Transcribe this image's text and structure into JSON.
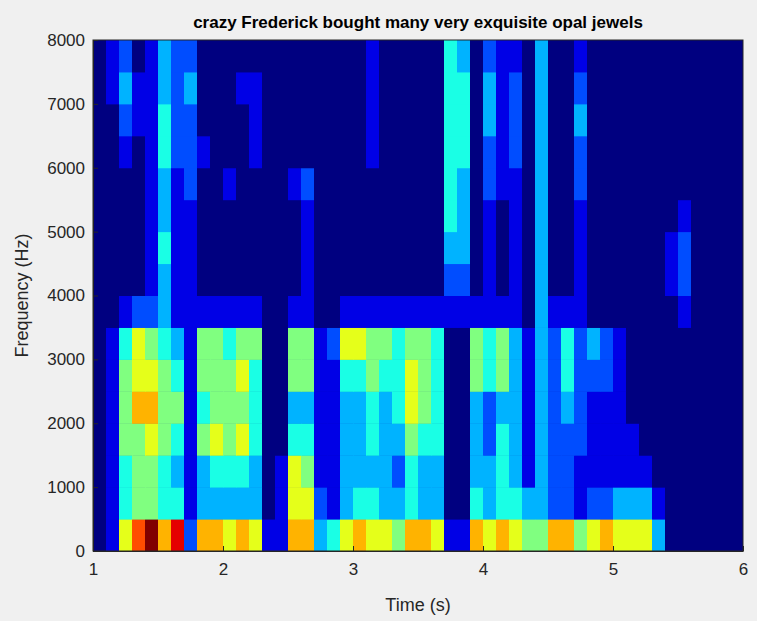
{
  "chart_data": {
    "type": "heatmap",
    "title": "crazy Frederick bought many very exquisite opal jewels",
    "x_label": "Time (s)",
    "y_label": "Frequency (Hz)",
    "xlim": [
      1,
      6
    ],
    "ylim": [
      0,
      8000
    ],
    "xticks": [
      1,
      2,
      3,
      4,
      5,
      6
    ],
    "yticks": [
      0,
      1000,
      2000,
      3000,
      4000,
      5000,
      6000,
      7000,
      8000
    ],
    "x_bins": [
      1,
      1.1,
      1.2,
      1.3,
      1.4,
      1.5,
      1.6,
      1.7,
      1.8,
      1.9,
      2,
      2.1,
      2.2,
      2.3,
      2.4,
      2.5,
      2.6,
      2.7,
      2.8,
      2.9,
      3,
      3.1,
      3.2,
      3.3,
      3.4,
      3.5,
      3.6,
      3.7,
      3.8,
      3.9,
      4,
      4.1,
      4.2,
      4.3,
      4.4,
      4.5,
      4.6,
      4.7,
      4.8,
      4.9,
      5,
      5.1,
      5.2,
      5.3,
      5.4,
      5.5,
      5.6,
      5.7,
      5.8,
      5.9,
      6
    ],
    "y_bins": [
      0,
      500,
      1000,
      1500,
      2000,
      2500,
      3000,
      3500,
      4000,
      4500,
      5000,
      5500,
      6000,
      6500,
      7000,
      7500,
      8000
    ],
    "z": [
      [
        0,
        0,
        0,
        0,
        0,
        0,
        0,
        0,
        0,
        0,
        0,
        0,
        0,
        0,
        0,
        0
      ],
      [
        1,
        1,
        1,
        1,
        1,
        1,
        1,
        0,
        0,
        0,
        0,
        0,
        0,
        0,
        1,
        1
      ],
      [
        6,
        4,
        4,
        5,
        5,
        5,
        4,
        1,
        0,
        0,
        0,
        0,
        1,
        2,
        3,
        2
      ],
      [
        8,
        5,
        5,
        5,
        7,
        6,
        6,
        2,
        0,
        0,
        0,
        0,
        0,
        1,
        1,
        0
      ],
      [
        10,
        5,
        5,
        6,
        7,
        6,
        5,
        2,
        1,
        1,
        1,
        1,
        1,
        1,
        1,
        1
      ],
      [
        7,
        4,
        4,
        5,
        5,
        5,
        4,
        3,
        3,
        4,
        3,
        3,
        4,
        4,
        3,
        3
      ],
      [
        9,
        4,
        3,
        4,
        5,
        4,
        3,
        1,
        1,
        1,
        1,
        1,
        2,
        2,
        2,
        2
      ],
      [
        2,
        1,
        1,
        1,
        1,
        1,
        1,
        1,
        1,
        1,
        1,
        2,
        2,
        2,
        3,
        2
      ],
      [
        7,
        3,
        3,
        5,
        4,
        5,
        5,
        1,
        0,
        0,
        0,
        0,
        1,
        0,
        0,
        0
      ],
      [
        7,
        3,
        4,
        6,
        5,
        5,
        5,
        1,
        0,
        0,
        0,
        0,
        0,
        0,
        0,
        0
      ],
      [
        6,
        3,
        4,
        5,
        5,
        5,
        4,
        1,
        0,
        0,
        0,
        1,
        0,
        0,
        0,
        0
      ],
      [
        7,
        3,
        4,
        6,
        5,
        6,
        5,
        1,
        0,
        0,
        0,
        0,
        0,
        0,
        1,
        0
      ],
      [
        6,
        3,
        3,
        4,
        4,
        4,
        5,
        1,
        0,
        0,
        0,
        0,
        1,
        1,
        1,
        0
      ],
      [
        1,
        0,
        0,
        0,
        0,
        0,
        0,
        0,
        0,
        0,
        0,
        0,
        0,
        0,
        0,
        0
      ],
      [
        1,
        1,
        1,
        0,
        0,
        0,
        0,
        0,
        0,
        0,
        0,
        0,
        0,
        0,
        0,
        0
      ],
      [
        7,
        6,
        6,
        4,
        3,
        5,
        5,
        1,
        0,
        0,
        0,
        1,
        0,
        0,
        0,
        0
      ],
      [
        7,
        6,
        5,
        4,
        3,
        5,
        5,
        1,
        1,
        1,
        1,
        2,
        0,
        0,
        0,
        0
      ],
      [
        3,
        2,
        1,
        1,
        1,
        1,
        1,
        0,
        0,
        0,
        0,
        0,
        0,
        0,
        0,
        0
      ],
      [
        4,
        1,
        1,
        1,
        1,
        1,
        2,
        0,
        0,
        0,
        0,
        0,
        0,
        0,
        0,
        0
      ],
      [
        6,
        3,
        3,
        3,
        3,
        4,
        6,
        1,
        0,
        0,
        0,
        0,
        0,
        0,
        0,
        0
      ],
      [
        7,
        4,
        3,
        3,
        3,
        4,
        6,
        1,
        0,
        0,
        0,
        0,
        0,
        0,
        0,
        0
      ],
      [
        6,
        4,
        3,
        4,
        4,
        5,
        5,
        1,
        0,
        0,
        0,
        0,
        1,
        1,
        1,
        1
      ],
      [
        6,
        3,
        3,
        3,
        3,
        4,
        5,
        1,
        0,
        0,
        0,
        0,
        0,
        0,
        0,
        0
      ],
      [
        5,
        3,
        2,
        3,
        4,
        4,
        4,
        1,
        0,
        0,
        0,
        0,
        0,
        0,
        0,
        0
      ],
      [
        7,
        4,
        4,
        5,
        6,
        6,
        5,
        1,
        0,
        0,
        0,
        0,
        0,
        0,
        0,
        0
      ],
      [
        7,
        3,
        3,
        4,
        5,
        5,
        5,
        1,
        0,
        0,
        0,
        0,
        0,
        0,
        0,
        0
      ],
      [
        6,
        3,
        3,
        4,
        4,
        4,
        4,
        1,
        0,
        0,
        0,
        0,
        0,
        0,
        0,
        0
      ],
      [
        1,
        0,
        0,
        0,
        0,
        0,
        0,
        1,
        2,
        3,
        4,
        4,
        4,
        4,
        4,
        4
      ],
      [
        1,
        0,
        0,
        0,
        0,
        0,
        0,
        1,
        2,
        3,
        3,
        3,
        4,
        4,
        4,
        3
      ],
      [
        7,
        4,
        3,
        3,
        3,
        5,
        5,
        1,
        0,
        0,
        0,
        0,
        0,
        0,
        0,
        0
      ],
      [
        6,
        3,
        3,
        2,
        2,
        4,
        4,
        1,
        1,
        1,
        1,
        2,
        2,
        3,
        3,
        2
      ],
      [
        7,
        4,
        4,
        4,
        3,
        5,
        5,
        1,
        0,
        0,
        0,
        1,
        1,
        1,
        1,
        1
      ],
      [
        6,
        4,
        3,
        3,
        3,
        3,
        3,
        1,
        1,
        1,
        1,
        1,
        2,
        2,
        2,
        1
      ],
      [
        5,
        3,
        1,
        1,
        1,
        1,
        1,
        0,
        0,
        0,
        0,
        0,
        0,
        0,
        0,
        0
      ],
      [
        5,
        3,
        3,
        3,
        3,
        3,
        3,
        3,
        3,
        3,
        3,
        3,
        3,
        3,
        3,
        3
      ],
      [
        7,
        2,
        2,
        2,
        2,
        2,
        2,
        1,
        0,
        0,
        0,
        0,
        0,
        0,
        0,
        0
      ],
      [
        7,
        2,
        2,
        2,
        3,
        4,
        4,
        1,
        0,
        0,
        0,
        0,
        0,
        0,
        0,
        0
      ],
      [
        5,
        1,
        1,
        2,
        2,
        2,
        2,
        1,
        1,
        1,
        1,
        2,
        2,
        3,
        2,
        1
      ],
      [
        6,
        2,
        1,
        1,
        1,
        2,
        3,
        0,
        0,
        0,
        0,
        0,
        0,
        0,
        0,
        0
      ],
      [
        7,
        2,
        1,
        1,
        1,
        2,
        2,
        0,
        0,
        0,
        0,
        0,
        0,
        0,
        0,
        0
      ],
      [
        6,
        3,
        1,
        1,
        1,
        1,
        1,
        0,
        0,
        0,
        0,
        0,
        0,
        0,
        0,
        0
      ],
      [
        6,
        3,
        1,
        1,
        0,
        0,
        0,
        0,
        0,
        0,
        0,
        0,
        0,
        0,
        0,
        0
      ],
      [
        6,
        3,
        1,
        0,
        0,
        0,
        0,
        0,
        0,
        0,
        0,
        0,
        0,
        0,
        0,
        0
      ],
      [
        3,
        1,
        0,
        0,
        0,
        0,
        0,
        0,
        0,
        0,
        0,
        0,
        0,
        0,
        0,
        0
      ],
      [
        0,
        0,
        0,
        0,
        0,
        0,
        0,
        0,
        1,
        1,
        0,
        0,
        0,
        0,
        0,
        0
      ],
      [
        0,
        0,
        0,
        0,
        0,
        0,
        0,
        1,
        2,
        2,
        1,
        0,
        0,
        0,
        0,
        0
      ],
      [
        0,
        0,
        0,
        0,
        0,
        0,
        0,
        0,
        0,
        0,
        0,
        0,
        0,
        0,
        0,
        0
      ],
      [
        0,
        0,
        0,
        0,
        0,
        0,
        0,
        0,
        0,
        0,
        0,
        0,
        0,
        0,
        0,
        0
      ],
      [
        0,
        0,
        0,
        0,
        0,
        0,
        0,
        0,
        0,
        0,
        0,
        0,
        0,
        0,
        0,
        0
      ],
      [
        0,
        0,
        0,
        0,
        0,
        0,
        0,
        0,
        0,
        0,
        0,
        0,
        0,
        0,
        0,
        0
      ]
    ]
  }
}
